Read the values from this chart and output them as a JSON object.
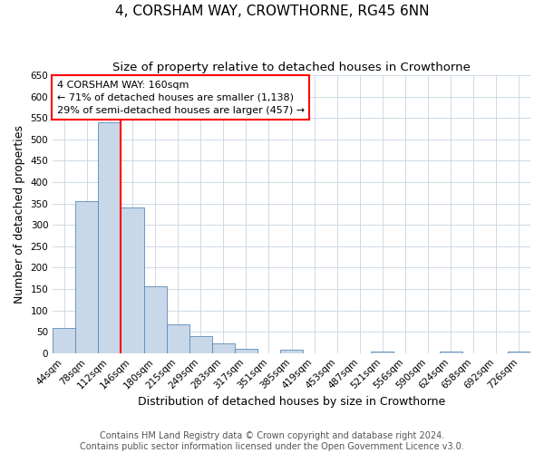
{
  "title": "4, CORSHAM WAY, CROWTHORNE, RG45 6NN",
  "subtitle": "Size of property relative to detached houses in Crowthorne",
  "xlabel": "Distribution of detached houses by size in Crowthorne",
  "ylabel": "Number of detached properties",
  "bin_labels": [
    "44sqm",
    "78sqm",
    "112sqm",
    "146sqm",
    "180sqm",
    "215sqm",
    "249sqm",
    "283sqm",
    "317sqm",
    "351sqm",
    "385sqm",
    "419sqm",
    "453sqm",
    "487sqm",
    "521sqm",
    "556sqm",
    "590sqm",
    "624sqm",
    "658sqm",
    "692sqm",
    "726sqm"
  ],
  "bar_heights": [
    58,
    355,
    540,
    340,
    157,
    68,
    40,
    23,
    10,
    0,
    8,
    0,
    0,
    0,
    3,
    0,
    0,
    3,
    0,
    0,
    3
  ],
  "bar_color": "#c8d8e8",
  "bar_edge_color": "#5a8ab8",
  "vline_x": 3,
  "vline_color": "red",
  "annotation_line1": "4 CORSHAM WAY: 160sqm",
  "annotation_line2": "← 71% of detached houses are smaller (1,138)",
  "annotation_line3": "29% of semi-detached houses are larger (457) →",
  "ylim": [
    0,
    650
  ],
  "yticks": [
    0,
    50,
    100,
    150,
    200,
    250,
    300,
    350,
    400,
    450,
    500,
    550,
    600,
    650
  ],
  "footer1": "Contains HM Land Registry data © Crown copyright and database right 2024.",
  "footer2": "Contains public sector information licensed under the Open Government Licence v3.0.",
  "title_fontsize": 11,
  "subtitle_fontsize": 9.5,
  "axis_label_fontsize": 9,
  "tick_fontsize": 7.5,
  "annotation_fontsize": 8,
  "footer_fontsize": 7
}
